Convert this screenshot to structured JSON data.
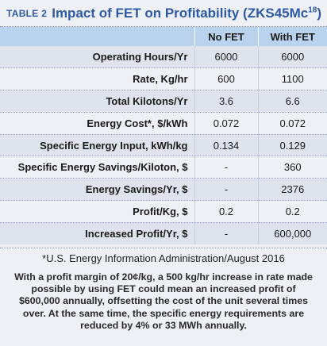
{
  "table_tag": "TABLE 2",
  "title": "Impact of FET on Profitability (ZKS45Mc",
  "title_sup": "18",
  "title_end": ")",
  "columns": [
    "No FET",
    "With FET"
  ],
  "rows": [
    {
      "label": "Operating Hours/Yr",
      "no_fet": "6000",
      "with_fet": "6000"
    },
    {
      "label": "Rate, Kg/hr",
      "no_fet": "600",
      "with_fet": "1100"
    },
    {
      "label": "Total Kilotons/Yr",
      "no_fet": "3.6",
      "with_fet": "6.6"
    },
    {
      "label": "Energy Cost*, $/kWh",
      "no_fet": "0.072",
      "with_fet": "0.072"
    },
    {
      "label": "Specific Energy Input, kWh/kg",
      "no_fet": "0.134",
      "with_fet": "0.129"
    },
    {
      "label": "Specific Energy Savings/Kiloton, $",
      "no_fet": "-",
      "with_fet": "360"
    },
    {
      "label": "Energy Savings/Yr, $",
      "no_fet": "-",
      "with_fet": "2376"
    },
    {
      "label": "Profit/Kg, $",
      "no_fet": "0.2",
      "with_fet": "0.2"
    },
    {
      "label": "Increased Profit/Yr, $",
      "no_fet": "-",
      "with_fet": "600,000"
    }
  ],
  "footnote": "*U.S. Energy Information Administration/August 2016",
  "note": "With a profit margin of 20¢/kg, a 500 kg/hr increase in rate made possible by using FET could mean an increased profit of $600,000 annually, offsetting the cost of the unit several times over. At the same time, the specific energy requirements are reduced by 4% or 33 MWh annually."
}
